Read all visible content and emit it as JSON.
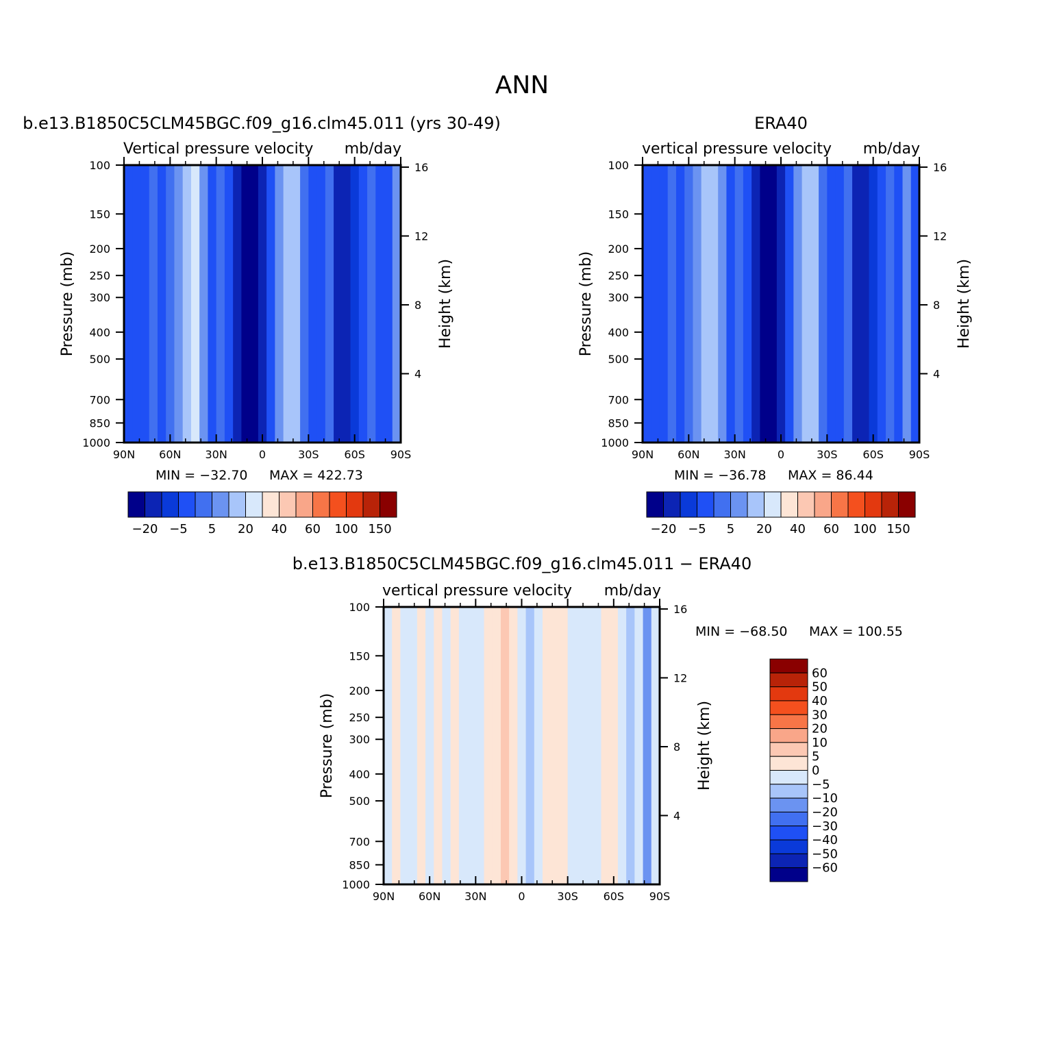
{
  "figure": {
    "title": "ANN"
  },
  "colors": {
    "abs_levels": [
      "#00008a",
      "#0c24b4",
      "#0a3ad9",
      "#1f50f5",
      "#4170f0",
      "#6b93f1",
      "#a8c5fa",
      "#d8e8fb",
      "#fde5d6",
      "#fcc8b3",
      "#f9a689",
      "#f77547",
      "#f4501e",
      "#e3390f",
      "#b82308",
      "#8a0000"
    ],
    "diff_levels": [
      "#00008a",
      "#0c24b4",
      "#0a3ad9",
      "#1f50f5",
      "#4170f0",
      "#6b93f1",
      "#a8c5fa",
      "#d8e8fb",
      "#fde5d6",
      "#fcc8b3",
      "#f9a689",
      "#f77547",
      "#f4501e",
      "#e3390f",
      "#b82308",
      "#8a0000"
    ]
  },
  "chart_data": [
    {
      "type": "heatmap",
      "title": "b.e13.B1850C5CLM45BGC.f09_g16.clm45.011 (yrs 30-49)",
      "subtitle_left": "Vertical pressure velocity",
      "subtitle_right": "mb/day",
      "x_tick_labels": [
        "90N",
        "60N",
        "30N",
        "0",
        "30S",
        "60S",
        "90S"
      ],
      "x_values": [
        90,
        60,
        30,
        0,
        -30,
        -60,
        -90
      ],
      "xlim": [
        90,
        -90
      ],
      "y_ticks": [
        100,
        150,
        200,
        250,
        300,
        400,
        500,
        700,
        850,
        1000
      ],
      "ylim": [
        1000,
        100
      ],
      "y_scale": "log",
      "ylabel": "Pressure (mb)",
      "right_ticks": [
        "16",
        "12",
        "8",
        "4"
      ],
      "right_tick_km": [
        16,
        12,
        8,
        4
      ],
      "right_label": "Height (km)",
      "min_label": "MIN = −32.70",
      "max_label": "MAX = 422.73",
      "min": -32.7,
      "max": 422.73,
      "colorbar_labels": [
        "−20",
        "−5",
        "5",
        "20",
        "40",
        "60",
        "100",
        "150"
      ],
      "colorbar_orientation": "horizontal"
    },
    {
      "type": "heatmap",
      "title": "ERA40",
      "subtitle_left": "vertical pressure velocity",
      "subtitle_right": "mb/day",
      "x_tick_labels": [
        "90N",
        "60N",
        "30N",
        "0",
        "30S",
        "60S",
        "90S"
      ],
      "x_values": [
        90,
        60,
        30,
        0,
        -30,
        -60,
        -90
      ],
      "xlim": [
        90,
        -90
      ],
      "y_ticks": [
        100,
        150,
        200,
        250,
        300,
        400,
        500,
        700,
        850,
        1000
      ],
      "ylim": [
        1000,
        100
      ],
      "y_scale": "log",
      "ylabel": "Pressure (mb)",
      "right_ticks": [
        "16",
        "12",
        "8",
        "4"
      ],
      "right_tick_km": [
        16,
        12,
        8,
        4
      ],
      "right_label": "Height (km)",
      "min_label": "MIN = −36.78",
      "max_label": "MAX = 86.44",
      "min": -36.78,
      "max": 86.44,
      "colorbar_labels": [
        "−20",
        "−5",
        "5",
        "20",
        "40",
        "60",
        "100",
        "150"
      ],
      "colorbar_orientation": "horizontal"
    },
    {
      "type": "heatmap",
      "title": "b.e13.B1850C5CLM45BGC.f09_g16.clm45.011 − ERA40",
      "subtitle_left": "vertical pressure velocity",
      "subtitle_right": "mb/day",
      "x_tick_labels": [
        "90N",
        "60N",
        "30N",
        "0",
        "30S",
        "60S",
        "90S"
      ],
      "x_values": [
        90,
        60,
        30,
        0,
        -30,
        -60,
        -90
      ],
      "xlim": [
        90,
        -90
      ],
      "y_ticks": [
        100,
        150,
        200,
        250,
        300,
        400,
        500,
        700,
        850,
        1000
      ],
      "ylim": [
        1000,
        100
      ],
      "y_scale": "log",
      "ylabel": "Pressure (mb)",
      "right_ticks": [
        "16",
        "12",
        "8",
        "4"
      ],
      "right_tick_km": [
        16,
        12,
        8,
        4
      ],
      "right_label": "Height (km)",
      "min_label": "MIN = −68.50",
      "max_label": "MAX = 100.55",
      "min": -68.5,
      "max": 100.55,
      "colorbar_labels": [
        "60",
        "50",
        "40",
        "30",
        "20",
        "10",
        "5",
        "0",
        "−5",
        "−10",
        "−20",
        "−30",
        "−40",
        "−50",
        "−60"
      ],
      "colorbar_orientation": "vertical"
    }
  ]
}
